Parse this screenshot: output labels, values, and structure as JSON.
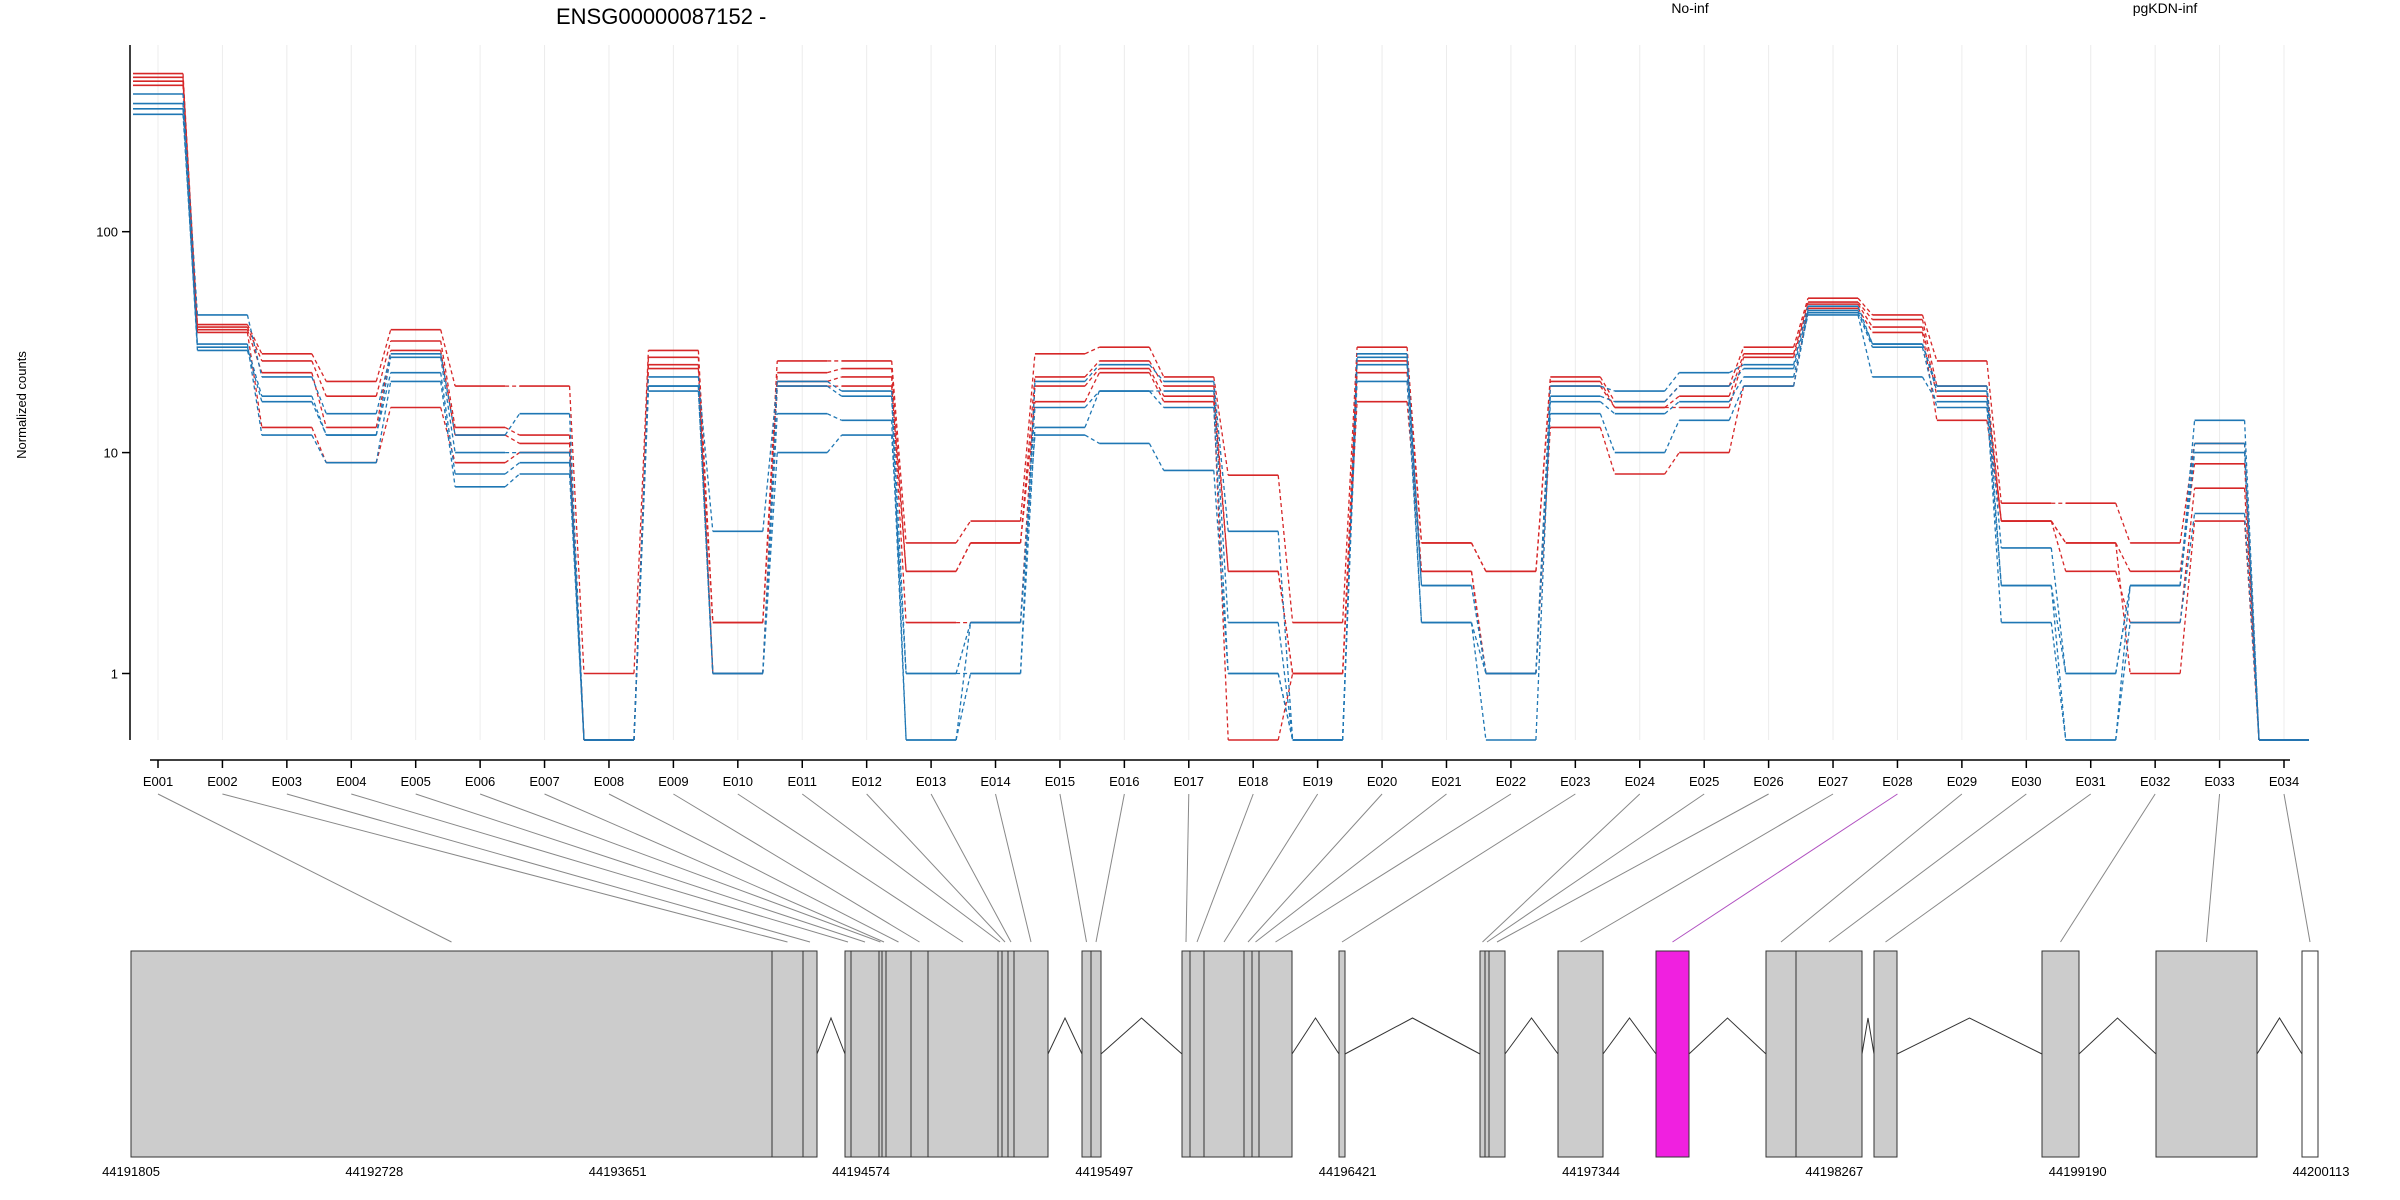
{
  "chart_data": {
    "type": "line",
    "title": "ENSG00000087152 -",
    "ylabel": "Normalized counts",
    "xlabel": "",
    "yscale": "log",
    "ylim": [
      0.5,
      700
    ],
    "yticks": [
      1,
      10,
      100
    ],
    "ytick_labels": [
      "1",
      "10",
      "100"
    ],
    "grid": "vertical",
    "legend": {
      "placement": "top",
      "entries": [
        {
          "name": "No-inf",
          "color": "#d62728"
        },
        {
          "name": "pgKDN-inf",
          "color": "#1f77b4"
        }
      ]
    },
    "categories": [
      "E001",
      "E002",
      "E003",
      "E004",
      "E005",
      "E006",
      "E007",
      "E008",
      "E009",
      "E010",
      "E011",
      "E012",
      "E013",
      "E014",
      "E015",
      "E016",
      "E017",
      "E018",
      "E019",
      "E020",
      "E021",
      "E022",
      "E023",
      "E024",
      "E025",
      "E026",
      "E027",
      "E028",
      "E029",
      "E030",
      "E031",
      "E032",
      "E033",
      "E034"
    ],
    "series": [
      {
        "group": "No-inf",
        "color": "#d62728",
        "values": [
          520,
          38,
          28,
          21,
          36,
          20,
          20,
          1.0,
          29,
          1.7,
          26,
          26,
          3.9,
          4.9,
          28,
          30,
          22,
          7.9,
          1.7,
          30,
          3.9,
          2.9,
          22,
          17,
          20,
          30,
          50,
          42,
          26,
          5.9,
          5.9,
          3.9,
          11,
          0.5
        ]
      },
      {
        "group": "No-inf",
        "color": "#d62728",
        "values": [
          500,
          37,
          26,
          18,
          32,
          13,
          12,
          0.5,
          27,
          1.0,
          23,
          24,
          2.9,
          3.9,
          22,
          26,
          20,
          2.9,
          1.0,
          26,
          3.9,
          2.9,
          21,
          16,
          18,
          28,
          48,
          40,
          20,
          4.9,
          3.9,
          2.9,
          8.9,
          0.5
        ]
      },
      {
        "group": "No-inf",
        "color": "#d62728",
        "values": [
          480,
          36,
          23,
          13,
          29,
          12,
          11,
          0.5,
          25,
          1.7,
          21,
          22,
          1.7,
          1.7,
          20,
          24,
          18,
          2.9,
          1.0,
          23,
          2.9,
          1.0,
          20,
          16,
          16,
          27,
          47,
          37,
          18,
          4.9,
          2.9,
          1.7,
          6.9,
          0.5
        ]
      },
      {
        "group": "No-inf",
        "color": "#d62728",
        "values": [
          460,
          35,
          13,
          9,
          16,
          9,
          10,
          0.5,
          24,
          1.0,
          20,
          20,
          2.9,
          3.9,
          17,
          23,
          17,
          0.5,
          1.0,
          17,
          2.9,
          1.0,
          13,
          8,
          10,
          20,
          45,
          35,
          14,
          4.9,
          3.9,
          1.0,
          4.9,
          0.5
        ]
      },
      {
        "group": "pgKDN-inf",
        "color": "#1f77b4",
        "values": [
          420,
          42,
          22,
          15,
          28,
          12,
          15,
          0.5,
          22,
          4.4,
          21,
          19,
          1.0,
          1.0,
          21,
          25,
          21,
          4.4,
          0.5,
          28,
          2.5,
          1.0,
          20,
          19,
          23,
          25,
          46,
          31,
          20,
          3.7,
          1.0,
          2.5,
          14,
          0.5
        ]
      },
      {
        "group": "pgKDN-inf",
        "color": "#1f77b4",
        "values": [
          380,
          30,
          18,
          12,
          27,
          10,
          10,
          0.5,
          20,
          1.0,
          15,
          14,
          0.5,
          1.0,
          13,
          19,
          19,
          1.7,
          0.5,
          27,
          2.5,
          1.0,
          18,
          17,
          20,
          24,
          44,
          31,
          19,
          2.5,
          1.0,
          2.5,
          11,
          0.5
        ]
      },
      {
        "group": "pgKDN-inf",
        "color": "#1f77b4",
        "values": [
          360,
          29,
          17,
          12,
          23,
          8,
          9,
          0.5,
          20,
          1.0,
          10,
          12,
          1.0,
          1.7,
          12,
          11,
          8.3,
          1.0,
          0.5,
          21,
          1.7,
          0.5,
          17,
          15,
          17,
          22,
          42,
          22,
          17,
          1.7,
          0.5,
          1.7,
          5.3,
          0.5
        ]
      },
      {
        "group": "pgKDN-inf",
        "color": "#1f77b4",
        "values": [
          340,
          31,
          12,
          9,
          21,
          7,
          8,
          0.5,
          19,
          1.0,
          20,
          18,
          0.5,
          1.7,
          16,
          19,
          16,
          1.0,
          0.5,
          25,
          1.7,
          1.0,
          15,
          10,
          14,
          20,
          43,
          30,
          16,
          2.5,
          0.5,
          2.5,
          10,
          0.5
        ]
      }
    ],
    "gene_track": {
      "coordinate_ticks": [
        "44191805",
        "44192728",
        "44193651",
        "44194574",
        "44195497",
        "44196421",
        "44197344",
        "44198267",
        "44199190",
        "44200113"
      ],
      "highlighted_exon": "E028",
      "highlight_color": "#f020e0",
      "exon_fill": "#cccccc",
      "exon_stroke": "#333333",
      "connector_color": "#888888"
    }
  }
}
